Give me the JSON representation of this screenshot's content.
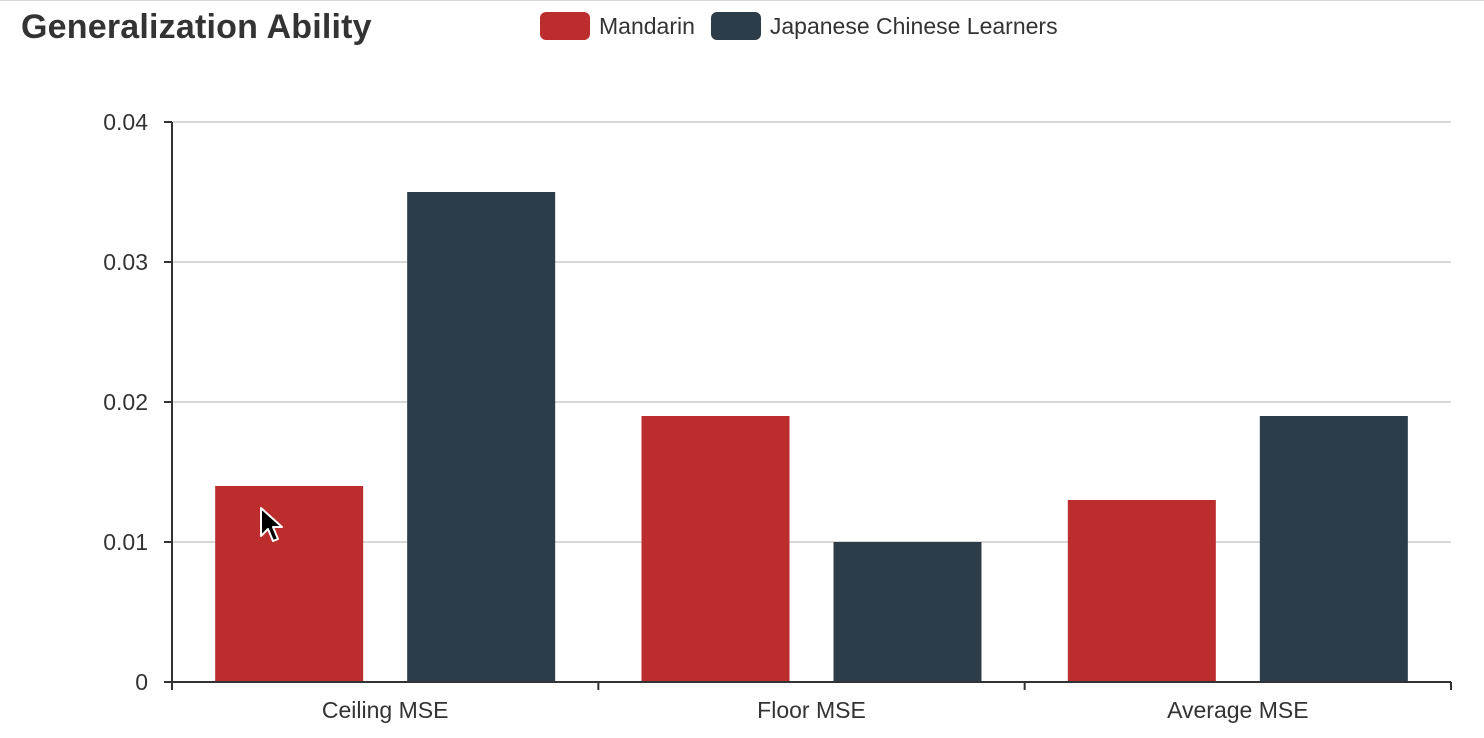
{
  "chart_data": {
    "type": "bar",
    "title": "Generalization Ability",
    "categories": [
      "Ceiling MSE",
      "Floor MSE",
      "Average MSE"
    ],
    "series": [
      {
        "name": "Mandarin",
        "color": "#bc2d2d",
        "values": [
          0.014,
          0.019,
          0.013
        ]
      },
      {
        "name": "Japanese Chinese Learners",
        "color": "#2c3c48",
        "values": [
          0.035,
          0.01,
          0.019
        ]
      }
    ],
    "yticks": [
      "0",
      "0.01",
      "0.02",
      "0.03",
      "0.04"
    ],
    "ylim": [
      0,
      0.04
    ],
    "xlabel": "",
    "ylabel": "",
    "grid": true,
    "legend_position": "top-center"
  },
  "colors": {
    "axis": "#333333",
    "grid": "#cccccc",
    "text": "#333333"
  }
}
